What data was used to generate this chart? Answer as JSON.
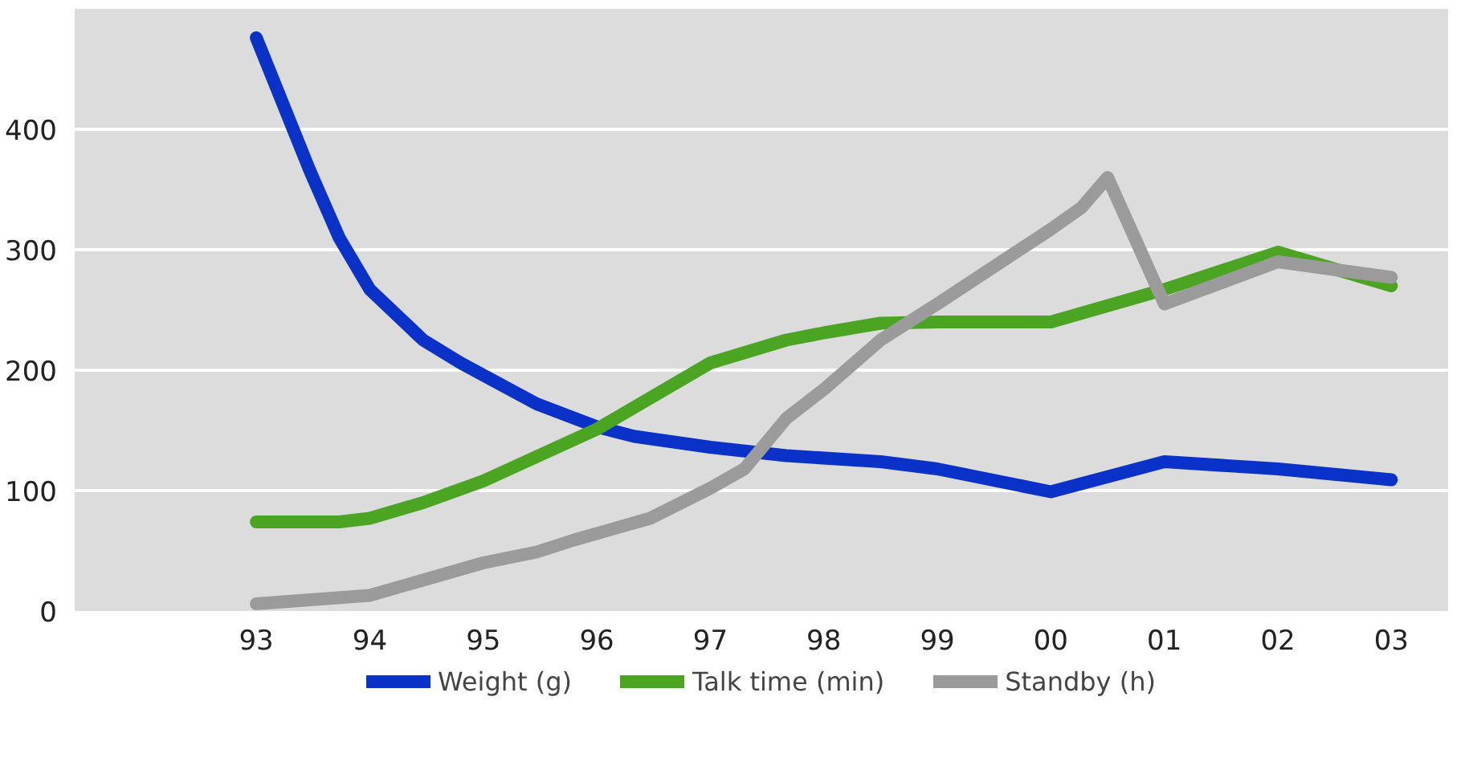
{
  "chart_data": {
    "type": "line",
    "xlim": [
      1991.4,
      2003.5
    ],
    "ylim": [
      0,
      500
    ],
    "xticks": [
      {
        "value": 1993,
        "label": "93"
      },
      {
        "value": 1994,
        "label": "94"
      },
      {
        "value": 1995,
        "label": "95"
      },
      {
        "value": 1996,
        "label": "96"
      },
      {
        "value": 1997,
        "label": "97"
      },
      {
        "value": 1998,
        "label": "98"
      },
      {
        "value": 1999,
        "label": "99"
      },
      {
        "value": 2000,
        "label": "00"
      },
      {
        "value": 2001,
        "label": "01"
      },
      {
        "value": 2002,
        "label": "02"
      },
      {
        "value": 2003,
        "label": "03"
      }
    ],
    "yticks": [
      0,
      100,
      200,
      300,
      400
    ],
    "grid": "y",
    "legend": "bottom",
    "marker": "none",
    "line_style": "solid",
    "series": [
      {
        "name": "Weight (g)",
        "color": "#0a32c8",
        "x": [
          1993,
          1993.47,
          1993.73,
          1994,
          1994.47,
          1994.8,
          1995.47,
          1996,
          1996.33,
          1997,
          1997.67,
          1998.5,
          1999,
          2000,
          2001,
          2002,
          2003
        ],
        "values": [
          476,
          366,
          310,
          267,
          225,
          206,
          172,
          153,
          145,
          136,
          129,
          124,
          118,
          99,
          124,
          118,
          109
        ]
      },
      {
        "name": "Talk time (min)",
        "color": "#4ba523",
        "x": [
          1993,
          1993.73,
          1994,
          1994.47,
          1995,
          1996,
          1997,
          1997.67,
          1998,
          1998.5,
          1999,
          2000,
          2001,
          2002,
          2003
        ],
        "values": [
          74,
          74,
          77,
          90,
          108,
          151,
          206,
          225,
          231,
          239,
          240,
          240,
          267,
          298,
          270
        ]
      },
      {
        "name": "Standby (h)",
        "color": "#9b9b9b",
        "x": [
          1993,
          1994,
          1995,
          1995.47,
          1995.8,
          1996.47,
          1997,
          1997.3,
          1997.67,
          1998,
          1998.5,
          1999,
          2000,
          2000.27,
          2000.5,
          2001,
          2002,
          2003
        ],
        "values": [
          6,
          13,
          40,
          49,
          59,
          77,
          102,
          118,
          160,
          184,
          225,
          255,
          317,
          335,
          360,
          255,
          290,
          277
        ]
      }
    ]
  }
}
